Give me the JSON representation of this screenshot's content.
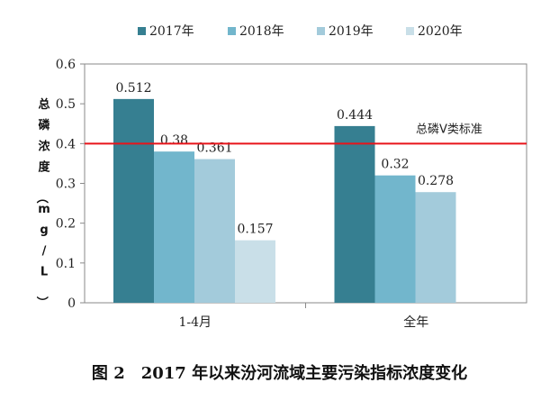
{
  "caption": "图 2　2017 年以来汾河流域主要污染指标浓度变化",
  "chart_data": {
    "type": "bar",
    "categories": [
      "1-4月",
      "全年"
    ],
    "series": [
      {
        "name": "2017年",
        "color": "#367f91",
        "values": [
          0.512,
          0.444
        ]
      },
      {
        "name": "2018年",
        "color": "#72b6cc",
        "values": [
          0.38,
          0.32
        ]
      },
      {
        "name": "2019年",
        "color": "#a3cbdb",
        "values": [
          0.361,
          0.278
        ]
      },
      {
        "name": "2020年",
        "color": "#c9dfe8",
        "values": [
          0.157,
          null
        ]
      }
    ],
    "data_labels": [
      [
        "0.512",
        "0.444"
      ],
      [
        "0.38",
        "0.32"
      ],
      [
        "0.361",
        "0.278"
      ],
      [
        "0.157",
        ""
      ]
    ],
    "ylabel": "总磷浓度（mg/L）",
    "ylim": [
      0,
      0.6
    ],
    "yticks": [
      "0",
      "0.1",
      "0.2",
      "0.3",
      "0.4",
      "0.5",
      "0.6"
    ],
    "grid": false,
    "legend_position": "top",
    "reference_line": {
      "value": 0.4,
      "label": "总磷Ⅴ类标准",
      "color": "#e8141a"
    }
  }
}
